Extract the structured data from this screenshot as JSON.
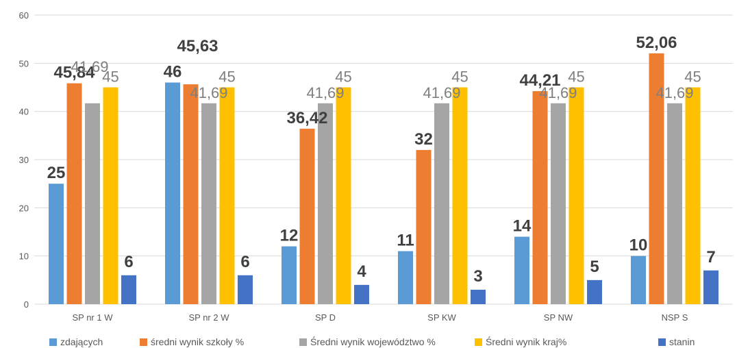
{
  "chart_data": {
    "type": "bar",
    "categories": [
      "SP nr 1 W",
      "SP nr 2 W",
      "SP D",
      "SP KW",
      "SP NW",
      "NSP S"
    ],
    "ylim": [
      0,
      60
    ],
    "yticks": [
      0,
      10,
      20,
      30,
      40,
      50,
      60
    ],
    "grid": true,
    "legend_position": "bottom",
    "series": [
      {
        "name": "zdających",
        "color": "#5b9bd5",
        "values": [
          25,
          46,
          12,
          11,
          14,
          10
        ],
        "labels": [
          "25",
          "46",
          "12",
          "11",
          "14",
          "10"
        ]
      },
      {
        "name": "średni wynik szkoły %",
        "color": "#ed7d31",
        "values": [
          45.84,
          45.63,
          36.42,
          32,
          44.21,
          52.06
        ],
        "labels": [
          "45,84",
          "45,63",
          "36,42",
          "32",
          "44,21",
          "52,06"
        ]
      },
      {
        "name": "Średni wynik województwo %",
        "color": "#a5a5a5",
        "values": [
          41.69,
          41.69,
          41.69,
          41.69,
          41.69,
          41.69
        ],
        "labels": [
          "41,69",
          "41,69",
          "41,69",
          "41,69",
          "41,69",
          "41,69"
        ]
      },
      {
        "name": "Średni wynik kraj%",
        "color": "#ffc000",
        "values": [
          45,
          45,
          45,
          45,
          45,
          45
        ],
        "labels": [
          "45",
          "45",
          "45",
          "45",
          "45",
          "45"
        ]
      },
      {
        "name": "stanin",
        "color": "#4472c4",
        "values": [
          6,
          6,
          4,
          3,
          5,
          7
        ],
        "labels": [
          "6",
          "6",
          "4",
          "3",
          "5",
          "7"
        ]
      }
    ]
  }
}
